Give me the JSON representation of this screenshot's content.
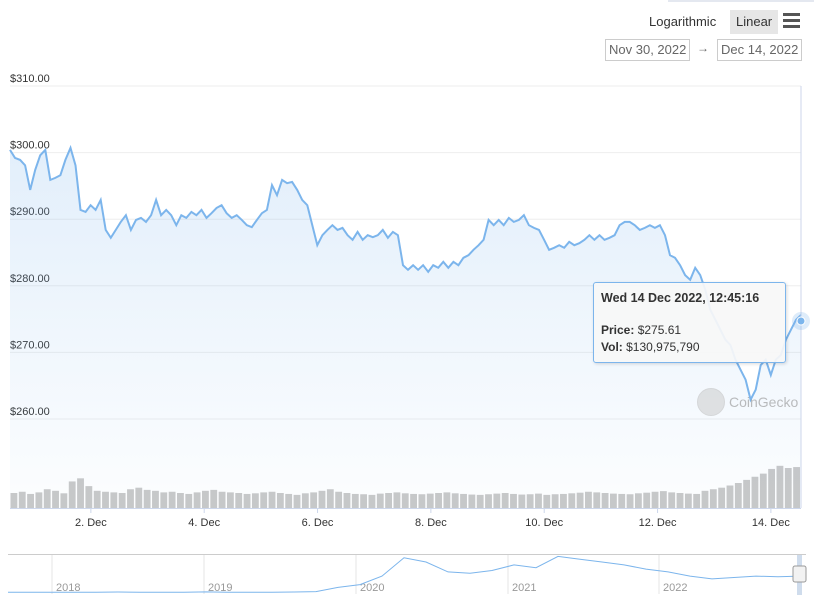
{
  "controls": {
    "logarithmic": "Logarithmic",
    "linear": "Linear",
    "menu_icon": "hamburger-menu-icon",
    "active_scale": "Linear"
  },
  "range": {
    "from": "Nov 30, 2022",
    "arrow": "→",
    "to": "Dec 14, 2022"
  },
  "tooltip": {
    "title": "Wed 14 Dec 2022, 12:45:16",
    "price_label": "Price:",
    "price": "$275.61",
    "vol_label": "Vol:",
    "vol": "$130,975,790"
  },
  "watermark": "CoinGecko",
  "colors": {
    "line": "#7cb5ec",
    "volume": "#c8c8c8",
    "tooltip_border": "#7cb5ec"
  },
  "chart_data": {
    "type": "line",
    "x_range": [
      "2022-11-30T13:45",
      "2022-12-14T12:45:16"
    ],
    "ylim": [
      250,
      310
    ],
    "yticks": [
      "$310.00",
      "$300.00",
      "$290.00",
      "$280.00",
      "$270.00",
      "$260.00"
    ],
    "ytick_values": [
      310,
      300,
      290,
      280,
      270,
      260
    ],
    "xticks": [
      "2. Dec",
      "4. Dec",
      "6. Dec",
      "8. Dec",
      "10. Dec",
      "12. Dec",
      "14. Dec"
    ],
    "xtick_dates": [
      "2022-12-02",
      "2022-12-04",
      "2022-12-06",
      "2022-12-08",
      "2022-12-10",
      "2022-12-12",
      "2022-12-14"
    ],
    "grid": true,
    "price": [
      300.4,
      299.2,
      298.9,
      298.1,
      294.4,
      297.4,
      299.6,
      300.4,
      295.9,
      296.2,
      296.6,
      298.9,
      300.7,
      298.1,
      291.4,
      291.1,
      292.1,
      291.4,
      292.9,
      288.4,
      287.2,
      288.4,
      289.6,
      290.6,
      288.4,
      289.9,
      290.2,
      289.6,
      290.6,
      292.9,
      290.6,
      291.4,
      290.6,
      289.1,
      290.6,
      290.2,
      291.1,
      290.6,
      291.4,
      290.2,
      290.9,
      291.7,
      292.1,
      290.9,
      290.2,
      290.6,
      289.9,
      289.1,
      288.8,
      289.9,
      290.9,
      291.4,
      295.1,
      293.6,
      295.9,
      295.4,
      295.6,
      294.4,
      292.9,
      292.1,
      289.1,
      286.1,
      287.6,
      288.4,
      289.1,
      288.4,
      288.7,
      287.6,
      286.9,
      288.1,
      286.9,
      287.6,
      287.3,
      287.6,
      288.4,
      287.2,
      288.1,
      287.6,
      283.1,
      282.4,
      283.1,
      282.4,
      283.1,
      282.1,
      283.1,
      282.7,
      283.6,
      282.7,
      283.6,
      283.1,
      284.2,
      284.6,
      285.4,
      286.1,
      286.9,
      289.9,
      289.1,
      289.9,
      289.1,
      290.2,
      289.6,
      289.9,
      290.6,
      289.1,
      288.7,
      288.4,
      286.9,
      285.4,
      285.7,
      286.1,
      285.7,
      286.6,
      286.1,
      286.4,
      286.9,
      287.6,
      286.9,
      287.6,
      286.9,
      287.2,
      287.6,
      289.1,
      289.6,
      289.6,
      289.1,
      288.4,
      288.7,
      289.1,
      288.7,
      289.1,
      287.6,
      284.6,
      284.2,
      283.1,
      281.6,
      280.9,
      282.7,
      281.6,
      279.4,
      276.4,
      274.9,
      273.4,
      271.9,
      271.1,
      268.9,
      267.4,
      265.9,
      262.9,
      264.4,
      268.1,
      268.9,
      266.6,
      268.9,
      269.6,
      271.9,
      273.4,
      274.9,
      275.61
    ],
    "volume_usd_millions": [
      48,
      52,
      45,
      50,
      60,
      55,
      47,
      85,
      95,
      70,
      55,
      52,
      50,
      48,
      60,
      65,
      58,
      55,
      50,
      52,
      48,
      45,
      50,
      55,
      58,
      52,
      50,
      48,
      45,
      47,
      50,
      52,
      48,
      45,
      42,
      47,
      50,
      55,
      60,
      52,
      48,
      45,
      44,
      42,
      46,
      48,
      50,
      47,
      45,
      44,
      46,
      48,
      50,
      47,
      45,
      43,
      42,
      44,
      46,
      48,
      45,
      43,
      44,
      46,
      42,
      44,
      45,
      47,
      49,
      52,
      50,
      48,
      46,
      45,
      44,
      47,
      49,
      52,
      54,
      50,
      48,
      46,
      45,
      55,
      60,
      65,
      72,
      80,
      90,
      100,
      110,
      125,
      135,
      128,
      131
    ],
    "navigator": {
      "xticks": [
        "2018",
        "2019",
        "2020",
        "2021",
        "2022"
      ],
      "price": [
        5,
        6,
        5,
        5,
        6,
        7,
        6,
        5,
        6,
        8,
        6,
        5,
        6,
        7,
        10,
        40,
        60,
        120,
        250,
        220,
        150,
        140,
        160,
        200,
        180,
        260,
        240,
        220,
        200,
        170,
        150,
        120,
        100,
        110,
        120,
        115,
        120
      ]
    }
  }
}
